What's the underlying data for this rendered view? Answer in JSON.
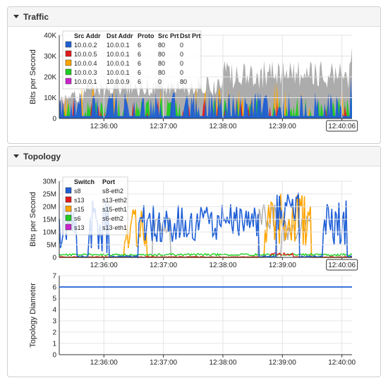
{
  "panels": {
    "traffic": {
      "title": "Traffic"
    },
    "topology": {
      "title": "Topology"
    }
  },
  "chart_data": [
    {
      "type": "area",
      "ylabel": "Bits per Second",
      "y_ticks": [
        "0",
        "10K",
        "20K",
        "30K",
        "40K"
      ],
      "ylim": [
        0,
        45000
      ],
      "x_ticks": [
        "12:36:00",
        "12:37:00",
        "12:38:00",
        "12:39:00",
        "12:40:06"
      ],
      "xlim": [
        0,
        246
      ],
      "legend": {
        "placement": "top-left",
        "headers": [
          "Src Addr",
          "Dst Addr",
          "Proto",
          "Src Prt",
          "Dst Prt"
        ],
        "rows": [
          {
            "color": "#1f5fd6",
            "src": "10.0.0.2",
            "dst": "10.0.0.1",
            "proto": "6",
            "sport": "80",
            "dport": "0"
          },
          {
            "color": "#e31a1c",
            "src": "10.0.0.5",
            "dst": "10.0.0.1",
            "proto": "6",
            "sport": "80",
            "dport": "0"
          },
          {
            "color": "#ffa500",
            "src": "10.0.0.4",
            "dst": "10.0.0.1",
            "proto": "6",
            "sport": "80",
            "dport": "0"
          },
          {
            "color": "#22cc22",
            "src": "10.0.0.3",
            "dst": "10.0.0.1",
            "proto": "6",
            "sport": "80",
            "dport": "0"
          },
          {
            "color": "#cc22cc",
            "src": "10.0.0.1",
            "dst": "10.0.0.9",
            "proto": "6",
            "sport": "0",
            "dport": "80"
          }
        ]
      }
    },
    {
      "type": "line",
      "ylabel": "Bits per Second",
      "y_ticks": [
        "0",
        "5M",
        "10M",
        "15M",
        "20M",
        "25M",
        "30M"
      ],
      "ylim": [
        0,
        30000000
      ],
      "x_ticks": [
        "12:36:00",
        "12:37:00",
        "12:38:00",
        "12:39:00",
        "12:40:06"
      ],
      "xlim": [
        0,
        246
      ],
      "legend": {
        "placement": "top-left",
        "headers": [
          "Switch",
          "Port"
        ],
        "rows": [
          {
            "color": "#1f5fd6",
            "switch": "s8",
            "port": "s8-eth2"
          },
          {
            "color": "#e31a1c",
            "switch": "s13",
            "port": "s13-eth2"
          },
          {
            "color": "#ffa500",
            "switch": "s15",
            "port": "s15-eth1"
          },
          {
            "color": "#22cc22",
            "switch": "s6",
            "port": "s6-eth2"
          },
          {
            "color": "#cc22cc",
            "switch": "s13",
            "port": "s13-eth1"
          }
        ]
      }
    },
    {
      "type": "line",
      "ylabel": "Topology Diameter",
      "y_ticks": [
        "0",
        "1",
        "2",
        "3",
        "4",
        "5",
        "6",
        "7"
      ],
      "ylim": [
        0,
        7
      ],
      "x_ticks": [
        "12:36:00",
        "12:37:00",
        "12:38:00",
        "12:39:00",
        "12:40:00"
      ],
      "series": [
        {
          "color": "#1f5fd6",
          "values": [
            6,
            6
          ]
        }
      ]
    }
  ]
}
